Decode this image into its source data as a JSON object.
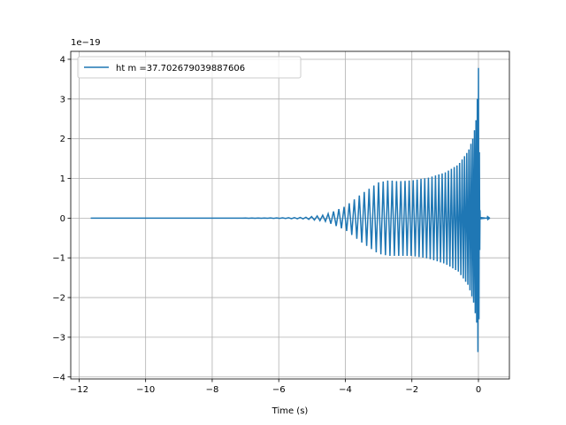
{
  "chart_data": {
    "type": "line",
    "title": "",
    "xlabel": "Time (s)",
    "ylabel": "",
    "offset_text": "1e−19",
    "y_scale_factor": 1e-19,
    "xlim": [
      -12.25,
      0.93
    ],
    "ylim": [
      -4.05,
      4.2
    ],
    "x_ticks": [
      -12,
      -10,
      -8,
      -6,
      -4,
      -2,
      0
    ],
    "x_tick_labels": [
      "−12",
      "−10",
      "−8",
      "−6",
      "−4",
      "−2",
      "0"
    ],
    "y_ticks": [
      -4,
      -3,
      -2,
      -1,
      0,
      1,
      2,
      3,
      4
    ],
    "y_tick_labels": [
      "−4",
      "−3",
      "−2",
      "−1",
      "0",
      "1",
      "2",
      "3",
      "4"
    ],
    "grid": true,
    "legend_position": "upper-left",
    "series": [
      {
        "name": "ht m =37.702679039887606",
        "color": "#1f77b4",
        "envelope": {
          "t": [
            -11.65,
            -7.5,
            -6.0,
            -5.2,
            -4.6,
            -4.0,
            -3.5,
            -3.0,
            -2.7,
            -2.4,
            -2.0,
            -1.5,
            -1.0,
            -0.6,
            -0.3,
            -0.15,
            -0.05,
            0.0,
            0.05,
            0.35
          ],
          "upper": [
            0.0,
            0.0,
            0.005,
            0.02,
            0.08,
            0.3,
            0.62,
            0.9,
            0.95,
            0.93,
            0.95,
            1.02,
            1.15,
            1.35,
            1.7,
            2.05,
            2.6,
            3.85,
            0.03,
            0.0
          ],
          "lower": [
            0.0,
            0.0,
            -0.005,
            -0.02,
            -0.08,
            -0.3,
            -0.62,
            -0.9,
            -0.95,
            -0.95,
            -0.95,
            -1.02,
            -1.15,
            -1.35,
            -1.7,
            -2.1,
            -2.65,
            -3.7,
            -0.03,
            0.0
          ]
        }
      }
    ]
  }
}
